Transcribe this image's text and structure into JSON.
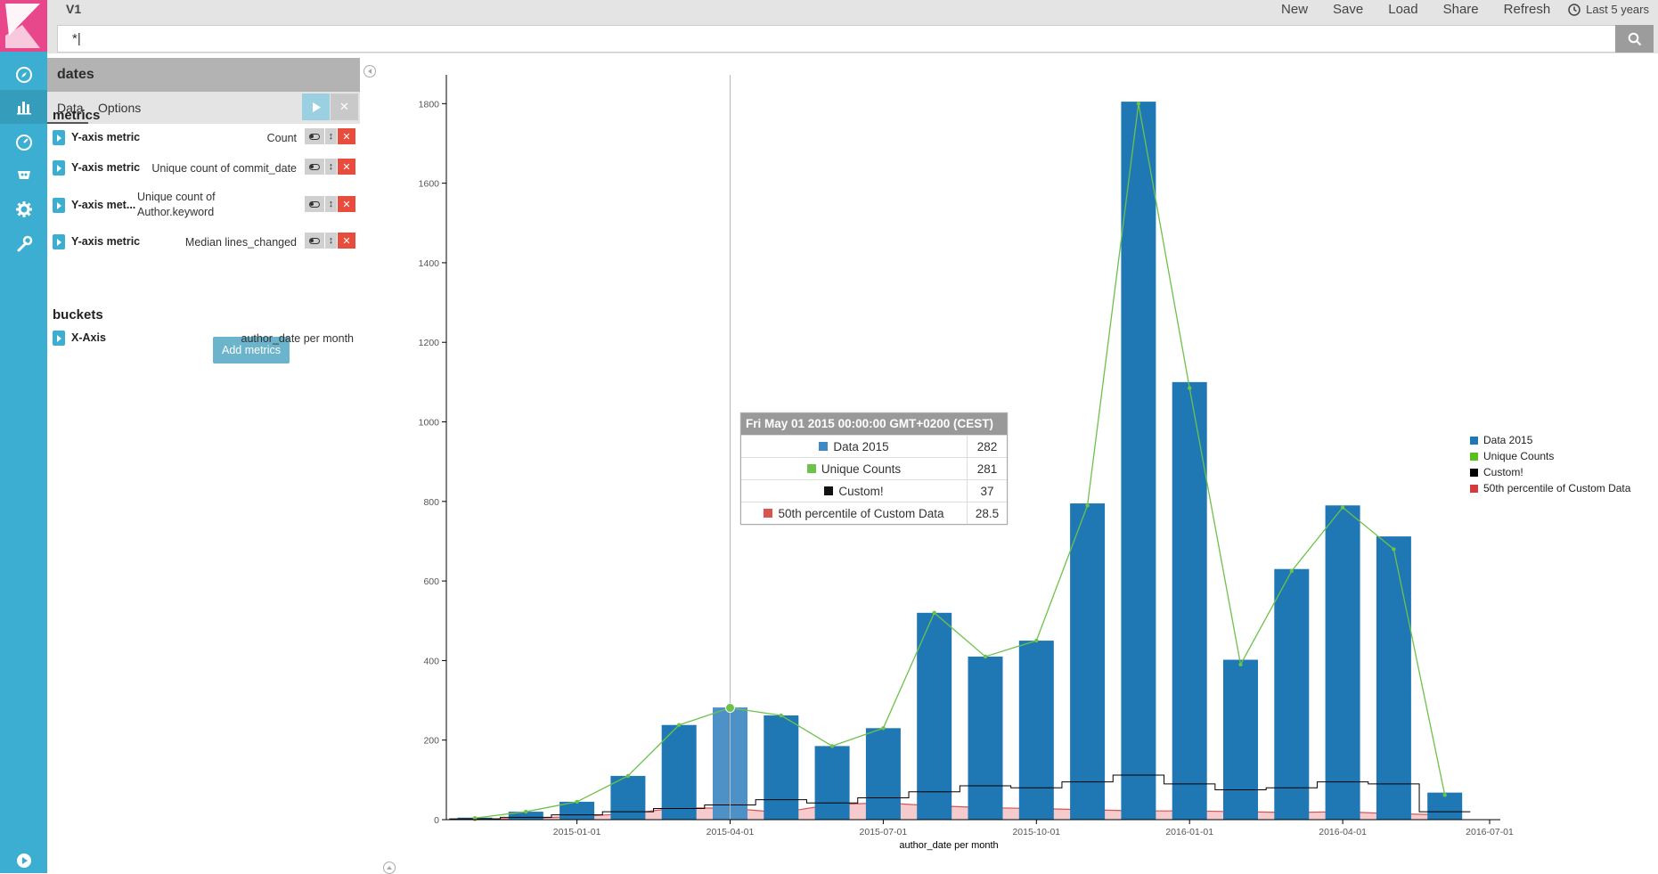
{
  "app": {
    "title": "V1"
  },
  "top_menu": {
    "new": "New",
    "save": "Save",
    "load": "Load",
    "share": "Share",
    "refresh": "Refresh",
    "time_range": "Last 5 years"
  },
  "query": {
    "value": "*|"
  },
  "nav": {
    "icons": [
      "kibana-logo",
      "discover-icon",
      "visualize-icon",
      "dashboard-icon",
      "timelion-icon",
      "settings-icon",
      "dev-tools-icon",
      "collapse-nav-icon"
    ]
  },
  "sidebar": {
    "vis_name": "dates",
    "tabs": {
      "data": "Data",
      "options": "Options"
    },
    "metrics_title": "metrics",
    "metrics": [
      {
        "label": "Y-axis metric",
        "desc": "Count"
      },
      {
        "label": "Y-axis metric",
        "desc": "Unique count of commit_date"
      },
      {
        "label": "Y-axis met...",
        "desc_line1": "Unique count of",
        "desc_line2": "Author.keyword"
      },
      {
        "label": "Y-axis metric",
        "desc": "Median lines_changed"
      }
    ],
    "add_metrics": "Add metrics",
    "buckets_title": "buckets",
    "buckets": [
      {
        "label": "X-Axis",
        "desc": "author_date per month"
      }
    ]
  },
  "tooltip": {
    "header": "Fri May 01 2015 00:00:00 GMT+0200 (CEST)",
    "rows": [
      {
        "label": "Data 2015",
        "value": "282"
      },
      {
        "label": "Unique Counts",
        "value": "281"
      },
      {
        "label": "Custom!",
        "value": "37"
      },
      {
        "label": "50th percentile of Custom Data",
        "value": "28.5"
      }
    ]
  },
  "legend": {
    "items": [
      {
        "label": "Data 2015",
        "color": "#1f78b4"
      },
      {
        "label": "Unique Counts",
        "color": "#57c17b"
      },
      {
        "label": "Custom!",
        "color": "#000000"
      },
      {
        "label": "50th percentile of Custom Data",
        "color": "#e7664c"
      }
    ]
  },
  "chart_data": {
    "type": "bar",
    "xlabel": "author_date per month",
    "ylabel": "",
    "ylim": [
      0,
      1850
    ],
    "yticks": [
      0,
      200,
      400,
      600,
      800,
      1000,
      1200,
      1400,
      1600,
      1800
    ],
    "xticks": [
      "2015-01-01",
      "2015-04-01",
      "2015-07-01",
      "2015-10-01",
      "2016-01-01",
      "2016-04-01",
      "2016-07-01"
    ],
    "categories": [
      "2014-11",
      "2014-12",
      "2015-01",
      "2015-02",
      "2015-03",
      "2015-04",
      "2015-05",
      "2015-06",
      "2015-07",
      "2015-08",
      "2015-09",
      "2015-10",
      "2015-11",
      "2015-12",
      "2016-01",
      "2016-02",
      "2016-03",
      "2016-04",
      "2016-05",
      "2016-06",
      "2016-07"
    ],
    "highlight_index": 5,
    "series": [
      {
        "name": "Data 2015",
        "kind": "bar",
        "color": "#1f78b4",
        "values": [
          5,
          20,
          45,
          110,
          238,
          282,
          262,
          185,
          230,
          520,
          410,
          450,
          795,
          1805,
          1100,
          402,
          630,
          790,
          712,
          68,
          0
        ]
      },
      {
        "name": "Unique Counts",
        "kind": "line",
        "color": "#6cc24a",
        "values": [
          4,
          20,
          45,
          110,
          238,
          281,
          262,
          185,
          230,
          520,
          410,
          450,
          790,
          1800,
          1085,
          390,
          625,
          785,
          680,
          62,
          0
        ]
      },
      {
        "name": "Custom!",
        "kind": "step",
        "color": "#000000",
        "values": [
          2,
          6,
          12,
          20,
          28,
          37,
          50,
          42,
          55,
          70,
          85,
          80,
          95,
          112,
          90,
          75,
          80,
          95,
          90,
          20,
          0
        ]
      },
      {
        "name": "50th percentile of Custom Data",
        "kind": "area",
        "color": "#d9534f",
        "values": [
          1,
          3,
          8,
          15,
          30,
          28.5,
          18,
          38,
          42,
          35,
          30,
          28,
          25,
          22,
          22,
          20,
          18,
          20,
          15,
          12,
          0
        ]
      }
    ]
  }
}
